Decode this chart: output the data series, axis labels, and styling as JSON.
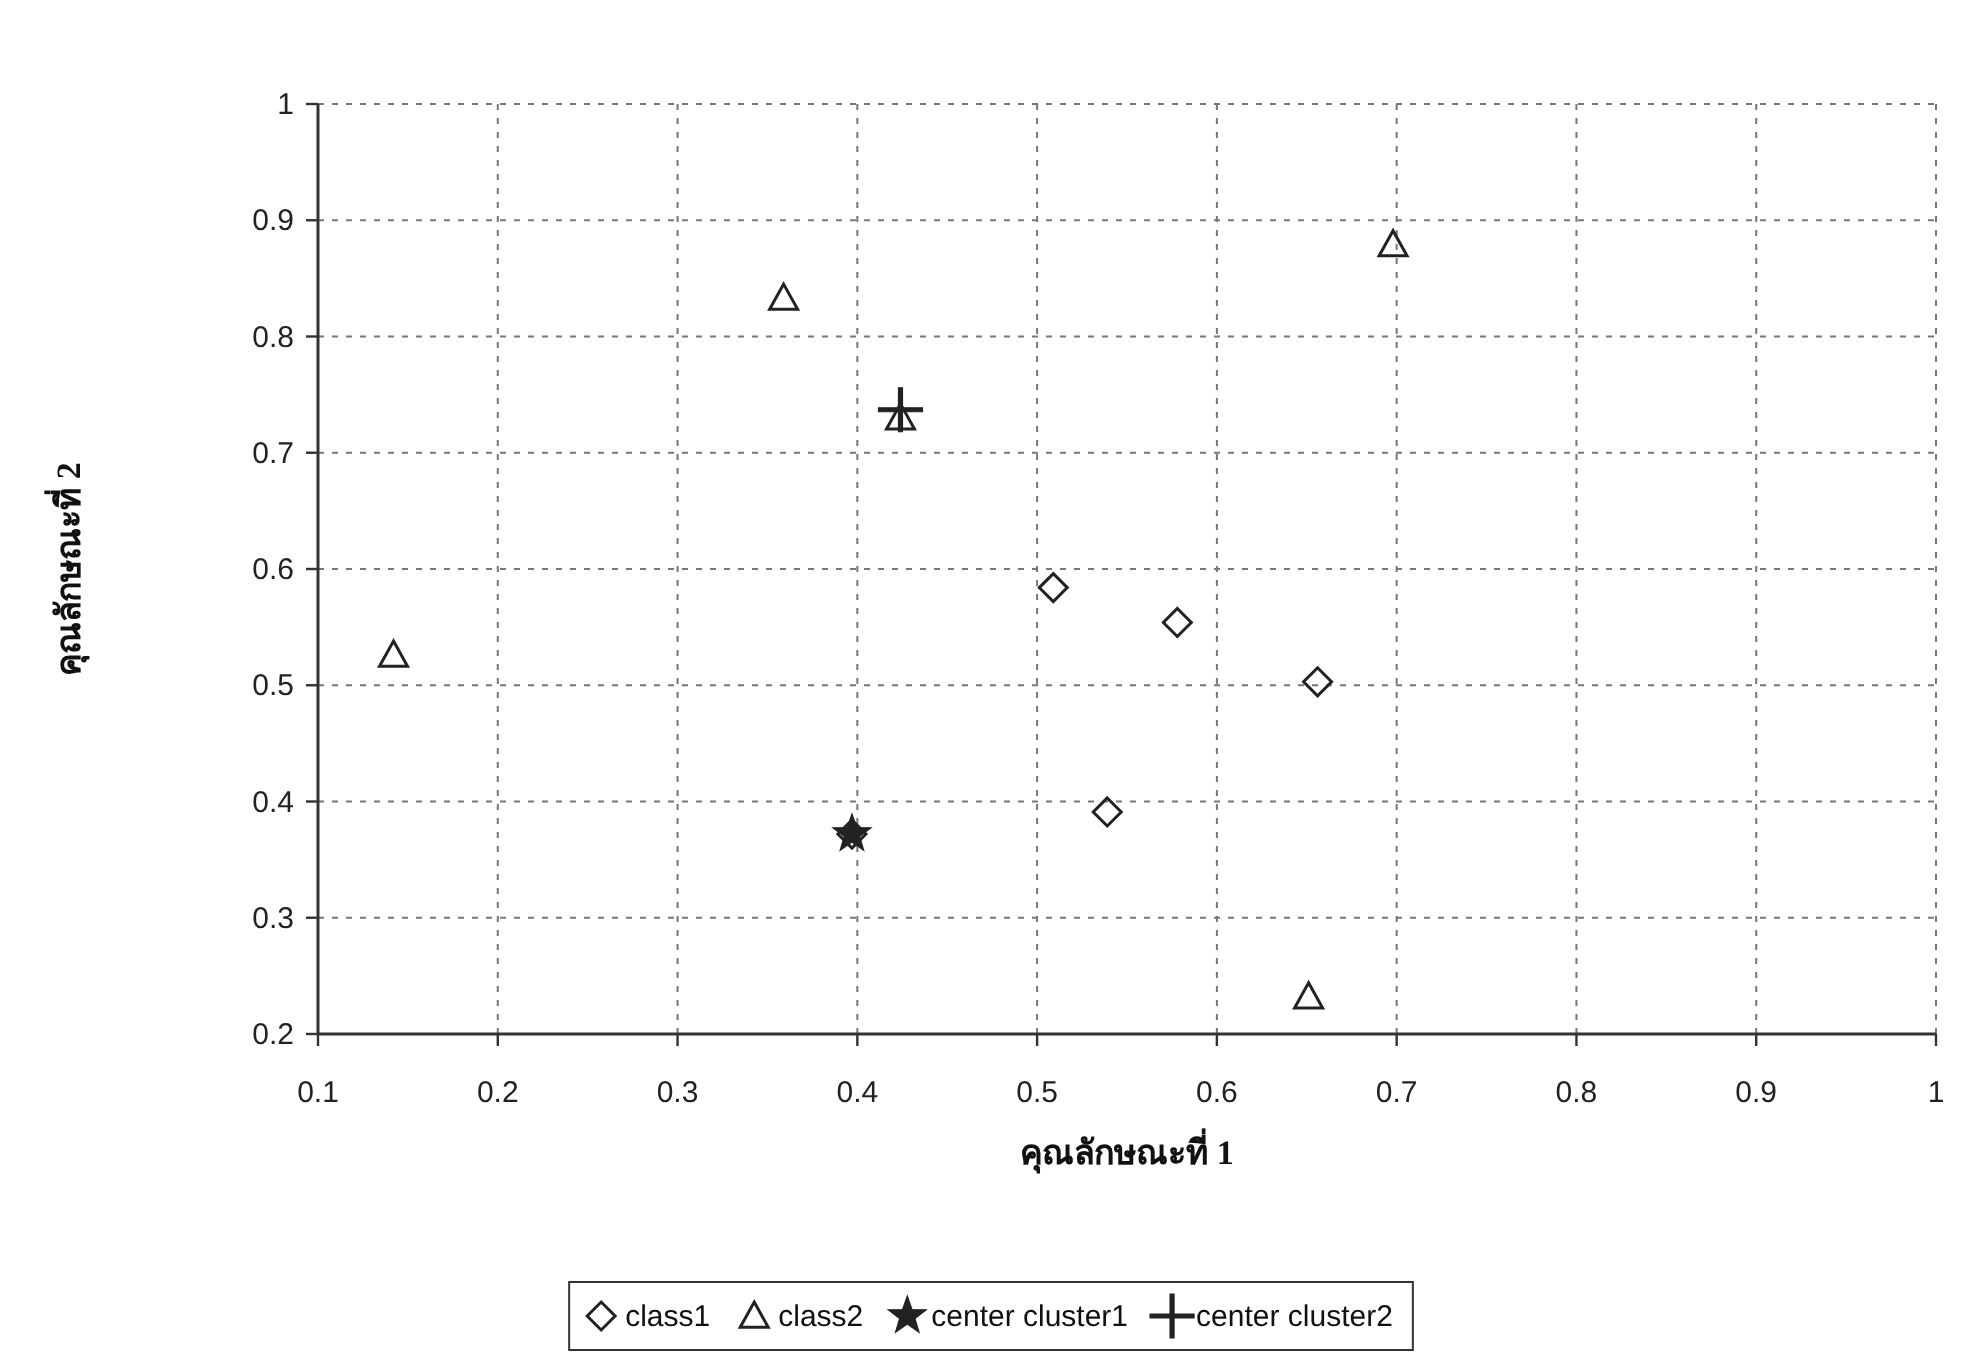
{
  "chart_data": {
    "type": "scatter",
    "xlabel": "คุณลักษณะที่ 1",
    "ylabel": "คุณลักษณะที่ 2",
    "xlim": [
      0.1,
      1
    ],
    "xticks": [
      0.1,
      0.2,
      0.3,
      0.4,
      0.5,
      0.6,
      0.7,
      0.8,
      0.9,
      1
    ],
    "ylim": [
      0.2,
      1
    ],
    "yticks": [
      0.2,
      0.3,
      0.4,
      0.5,
      0.6,
      0.7,
      0.8,
      0.9,
      1
    ],
    "grid": true,
    "legend": "bottom",
    "series": [
      {
        "name": "class1",
        "color": "#222222",
        "marker": "diamond",
        "x": [
          0.509,
          0.578,
          0.656,
          0.539,
          0.397
        ],
        "values": [
          0.584,
          0.554,
          0.503,
          0.391,
          0.372
        ]
      },
      {
        "name": "class2",
        "color": "#222222",
        "marker": "triangle",
        "x": [
          0.142,
          0.359,
          0.424,
          0.698,
          0.651
        ],
        "values": [
          0.526,
          0.833,
          0.73,
          0.879,
          0.232
        ]
      },
      {
        "name": "center cluster1",
        "color": "#222222",
        "marker": "star",
        "x": [
          0.397
        ],
        "values": [
          0.372
        ]
      },
      {
        "name": "center cluster2",
        "color": "#222222",
        "marker": "cross",
        "x": [
          0.424
        ],
        "values": [
          0.737
        ]
      }
    ]
  }
}
